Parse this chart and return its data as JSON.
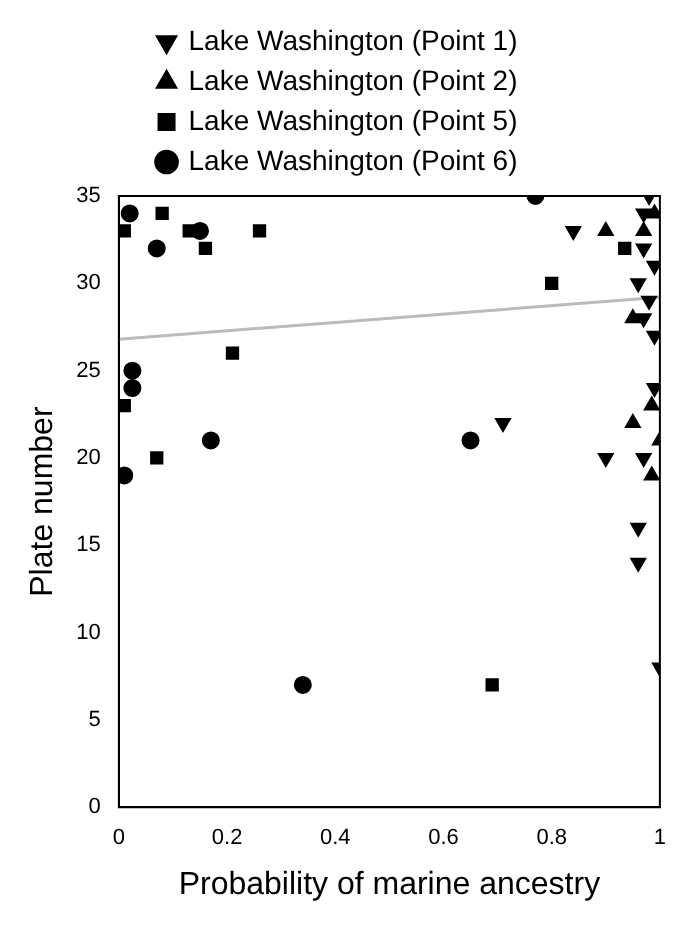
{
  "chart_data": {
    "type": "scatter",
    "xlabel": "Probability of marine ancestry",
    "ylabel": "Plate number",
    "xlim": [
      0,
      1
    ],
    "xticks": [
      0,
      0.2,
      0.4,
      0.6,
      0.8,
      1
    ],
    "ylim": [
      0,
      35
    ],
    "yticks": [
      0,
      5,
      10,
      15,
      20,
      25,
      30,
      35
    ],
    "grid": false,
    "legend": "top",
    "series": [
      {
        "name": "Lake Washington (Point 1)",
        "color": "#000000",
        "marker": "triangle-down",
        "x": [
          0.84,
          0.98,
          0.97,
          0.97,
          0.99,
          0.96,
          0.98,
          0.97,
          0.99,
          0.71,
          0.9,
          0.97,
          0.99,
          0.96,
          0.96,
          1.0
        ],
        "values": [
          33,
          35,
          34,
          32,
          31,
          30,
          29,
          28,
          27,
          22,
          20,
          20,
          24,
          16,
          14,
          8
        ]
      },
      {
        "name": "Lake Washington (Point 2)",
        "color": "#000000",
        "marker": "triangle",
        "x": [
          0.9,
          0.97,
          0.99,
          0.95,
          0.95,
          1.0,
          0.985,
          0.985
        ],
        "values": [
          33,
          33,
          34,
          28,
          22,
          21,
          19,
          23
        ]
      },
      {
        "name": "Lake Washington (Point 5)",
        "color": "#000000",
        "marker": "square",
        "x": [
          0.08,
          0.01,
          0.13,
          0.16,
          0.26,
          0.21,
          0.01,
          0.07,
          0.935,
          0.8,
          0.69
        ],
        "values": [
          34,
          33,
          33,
          32,
          33,
          26,
          23,
          20,
          32,
          30,
          7
        ]
      },
      {
        "name": "Lake Washington (Point 6)",
        "color": "#000000",
        "marker": "circle",
        "x": [
          0.02,
          0.07,
          0.15,
          0.025,
          0.025,
          0.01,
          0.17,
          0.34,
          0.77,
          0.65
        ],
        "values": [
          34,
          32,
          33,
          25,
          24,
          19,
          21,
          7,
          35,
          21
        ]
      },
      {
        "type": "line",
        "color": "#bbbbbb",
        "marker": "none",
        "x": [
          0,
          1
        ],
        "values": [
          26.8,
          29.2
        ]
      }
    ]
  }
}
